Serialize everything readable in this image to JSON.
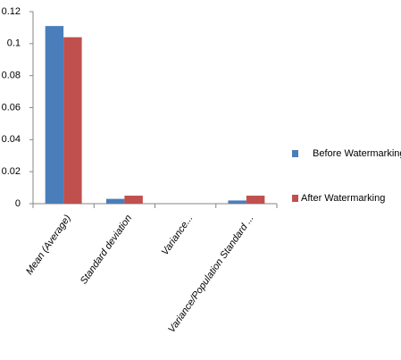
{
  "chart_data": {
    "type": "bar",
    "categories": [
      "Mean (Average)",
      "Standard deviation",
      "Variance...",
      "Variance/Population Standard ..."
    ],
    "series": [
      {
        "name": "Before Watermarking",
        "color": "#4a7ebb",
        "values": [
          0.111,
          0.003,
          0,
          0.002
        ]
      },
      {
        "name": "After Watermarking",
        "color": "#c0504d",
        "values": [
          0.104,
          0.005,
          0,
          0.005
        ]
      }
    ],
    "ylim": [
      0,
      0.12
    ],
    "yticks": [
      0,
      0.02,
      0.04,
      0.06,
      0.08,
      0.1,
      0.12
    ],
    "grid": false,
    "legend": "right"
  }
}
